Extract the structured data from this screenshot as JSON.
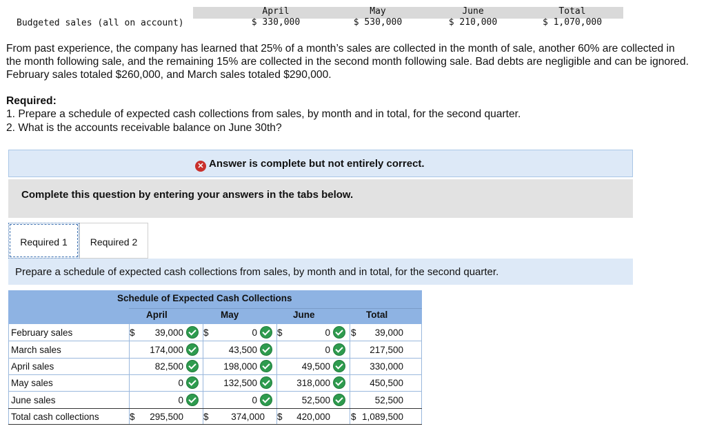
{
  "budget": {
    "row_label": "Budgeted sales (all on account)",
    "columns": [
      {
        "month": "April",
        "value": "$ 330,000"
      },
      {
        "month": "May",
        "value": "$ 530,000"
      },
      {
        "month": "June",
        "value": "$ 210,000"
      },
      {
        "month": "Total",
        "value": "$ 1,070,000"
      }
    ]
  },
  "paragraph": "From past experience, the company has learned that 25% of a month’s sales are collected in the month of sale, another 60% are collected in the month following sale, and the remaining 15% are collected in the second month following sale. Bad debts are negligible and can be ignored. February sales totaled $260,000, and March sales totaled $290,000.",
  "required": {
    "heading": "Required:",
    "items": [
      "1. Prepare a schedule of expected cash collections from sales, by month and in total, for the second quarter.",
      "2. What is the accounts receivable balance on June 30th?"
    ]
  },
  "banner": {
    "message": "Answer is complete but not entirely correct.",
    "icon": "x-circle-icon",
    "color": "#c9302c"
  },
  "instruction": "Complete this question by entering your answers in the tabs below.",
  "tabs": [
    {
      "label": "Required 1",
      "active": true
    },
    {
      "label": "Required 2",
      "active": false
    }
  ],
  "prompt": "Prepare a schedule of expected cash collections from sales, by month and in total, for the second quarter.",
  "schedule": {
    "title": "Schedule of Expected Cash Collections",
    "headers": [
      "April",
      "May",
      "June",
      "Total"
    ],
    "rows": [
      {
        "label": "February sales",
        "april": "39,000",
        "may": "0",
        "june": "0",
        "total": "39,000"
      },
      {
        "label": "March sales",
        "april": "174,000",
        "may": "43,500",
        "june": "0",
        "total": "217,500"
      },
      {
        "label": "April sales",
        "april": "82,500",
        "may": "198,000",
        "june": "49,500",
        "total": "330,000"
      },
      {
        "label": "May sales",
        "april": "0",
        "may": "132,500",
        "june": "318,000",
        "total": "450,500"
      },
      {
        "label": "June sales",
        "april": "0",
        "may": "0",
        "june": "52,500",
        "total": "52,500"
      }
    ],
    "total_row": {
      "label": "Total cash collections",
      "april": "295,500",
      "may": "374,000",
      "june": "420,000",
      "total": "1,089,500"
    },
    "currency_symbol": "$",
    "check_color": "#2e9b4e",
    "header_color": "#8eb3e3"
  }
}
